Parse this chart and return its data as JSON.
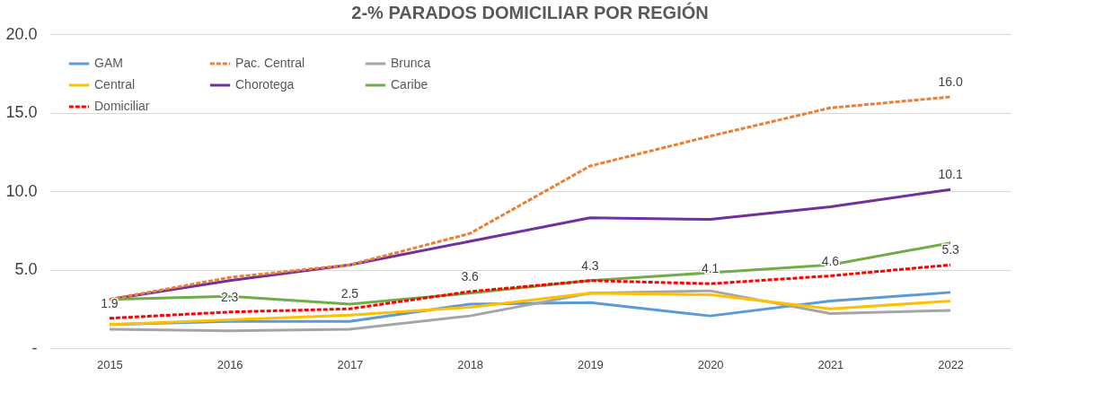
{
  "chart_data": {
    "type": "line",
    "title": "2-% PARADOS DOMICILIAR POR REGIÓN",
    "categories": [
      "2015",
      "2016",
      "2017",
      "2018",
      "2019",
      "2020",
      "2021",
      "2022"
    ],
    "series": [
      {
        "name": "GAM",
        "color": "#5b9bd5",
        "line_style": "solid",
        "values": [
          1.5,
          1.7,
          1.7,
          2.8,
          2.9,
          2.05,
          3.0,
          3.55
        ]
      },
      {
        "name": "Pac. Central",
        "color": "#ed7d31",
        "line_style": "dashed",
        "values": [
          3.1,
          4.5,
          5.3,
          7.3,
          11.6,
          13.5,
          15.3,
          16.0
        ],
        "value_labels": [
          null,
          null,
          null,
          null,
          null,
          null,
          null,
          "16.0"
        ]
      },
      {
        "name": "Brunca",
        "color": "#a5a5a5",
        "line_style": "solid",
        "values": [
          1.2,
          1.1,
          1.2,
          2.05,
          3.5,
          3.65,
          2.2,
          2.4
        ]
      },
      {
        "name": "Central",
        "color": "#ffc000",
        "line_style": "solid",
        "values": [
          1.5,
          1.8,
          2.1,
          2.6,
          3.5,
          3.4,
          2.5,
          3.0
        ]
      },
      {
        "name": "Chorotega",
        "color": "#7030a0",
        "line_style": "solid",
        "values": [
          3.1,
          4.3,
          5.3,
          6.8,
          8.3,
          8.2,
          9.0,
          10.1
        ],
        "value_labels": [
          null,
          null,
          null,
          null,
          null,
          null,
          null,
          "10.1"
        ]
      },
      {
        "name": "Caribe",
        "color": "#70ad47",
        "line_style": "solid",
        "values": [
          3.1,
          3.3,
          2.8,
          3.5,
          4.3,
          4.8,
          5.3,
          6.7
        ]
      },
      {
        "name": "Domiciliar",
        "color": "#ff0000",
        "line_style": "dashed",
        "values": [
          1.9,
          2.3,
          2.5,
          3.6,
          4.3,
          4.1,
          4.6,
          5.3
        ],
        "value_labels": [
          "1.9",
          "2.3",
          "2.5",
          "3.6",
          "4.3",
          "4.1",
          "4.6",
          "5.3"
        ]
      }
    ],
    "ylim": [
      0,
      20
    ],
    "yticks": [
      {
        "value": 0,
        "label": "-"
      },
      {
        "value": 5,
        "label": "5.0"
      },
      {
        "value": 10,
        "label": "10.0"
      },
      {
        "value": 15,
        "label": "15.0"
      },
      {
        "value": 20,
        "label": "20.0"
      }
    ],
    "grid": "y",
    "legend": "top left",
    "marker": "none"
  }
}
